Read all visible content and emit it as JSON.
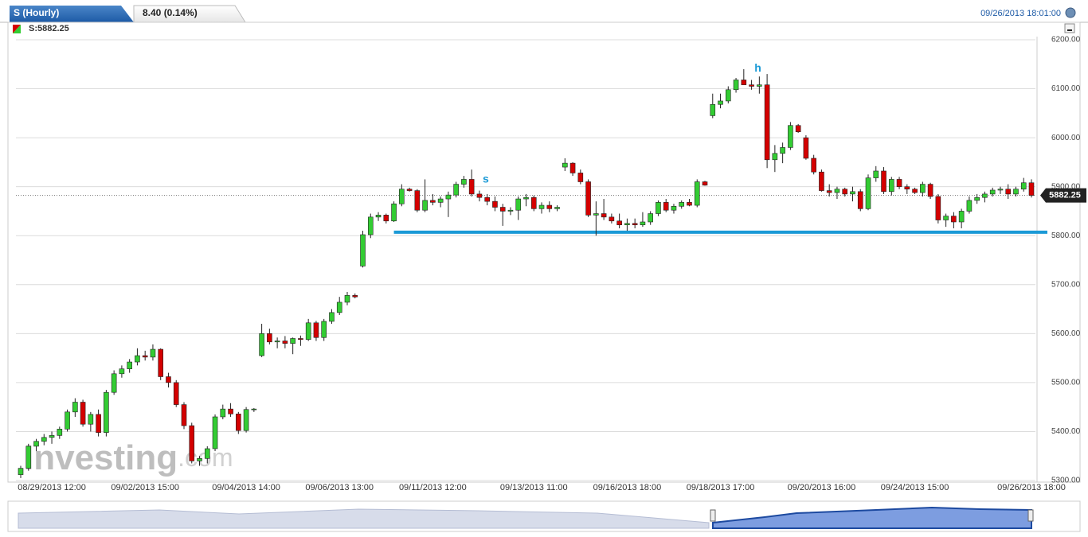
{
  "header": {
    "title": "S (Hourly)",
    "change": "8.40 (0.14%)",
    "timestamp": "09/26/2013 18:01:00",
    "legend": "S:5882.25"
  },
  "chart_data": {
    "type": "candlestick",
    "ylim": [
      5300,
      6200
    ],
    "yticks": [
      {
        "value": 5300,
        "label": "5300.00"
      },
      {
        "value": 5400,
        "label": "5400.00"
      },
      {
        "value": 5500,
        "label": "5500.00"
      },
      {
        "value": 5600,
        "label": "5600.00"
      },
      {
        "value": 5700,
        "label": "5700.00"
      },
      {
        "value": 5800,
        "label": "5800.00"
      },
      {
        "value": 5900,
        "label": "5900.00"
      },
      {
        "value": 6000,
        "label": "6000.00"
      },
      {
        "value": 6100,
        "label": "6100.00"
      },
      {
        "value": 6200,
        "label": "6200.00"
      }
    ],
    "grid": true,
    "up_color": "#33cc33",
    "down_color": "#d40000",
    "last_price": {
      "value": 5882.25,
      "label": "5882.25"
    },
    "support": {
      "value": 5807,
      "from": 48,
      "color": "#1b9ad6"
    },
    "annotations": [
      {
        "text": "s",
        "at": 59
      },
      {
        "text": "h",
        "at": 94
      }
    ],
    "watermark": "Investing",
    "watermark_suffix": ".com",
    "categories": [
      null,
      null,
      null,
      null,
      "08/29/2013 12:00",
      null,
      null,
      null,
      null,
      null,
      null,
      null,
      null,
      null,
      null,
      null,
      "09/02/2013 15:00",
      null,
      null,
      null,
      null,
      null,
      null,
      null,
      null,
      null,
      null,
      null,
      null,
      "09/04/2013 14:00",
      null,
      null,
      null,
      null,
      null,
      null,
      null,
      null,
      null,
      null,
      null,
      "09/06/2013 13:00",
      null,
      null,
      null,
      null,
      null,
      null,
      null,
      null,
      null,
      null,
      null,
      "09/11/2013 12:00",
      null,
      null,
      null,
      null,
      null,
      null,
      null,
      null,
      null,
      null,
      null,
      null,
      "09/13/2013 11:00",
      null,
      null,
      null,
      null,
      null,
      null,
      null,
      null,
      null,
      null,
      null,
      "09/16/2013 18:00",
      null,
      null,
      null,
      null,
      null,
      null,
      null,
      null,
      null,
      null,
      null,
      "09/18/2013 17:00",
      null,
      null,
      null,
      null,
      null,
      null,
      null,
      null,
      null,
      null,
      null,
      null,
      "09/20/2013 16:00",
      null,
      null,
      null,
      null,
      null,
      null,
      null,
      null,
      null,
      null,
      null,
      "09/24/2013 15:00",
      null,
      null,
      null,
      null,
      null,
      null,
      null,
      null,
      null,
      null,
      null,
      null,
      null,
      null,
      "09/26/2013 18:00"
    ],
    "ohlc": [
      [
        5312,
        5330,
        5305,
        5325
      ],
      [
        5325,
        5375,
        5320,
        5370
      ],
      [
        5370,
        5385,
        5360,
        5380
      ],
      [
        5380,
        5395,
        5372,
        5388
      ],
      [
        5388,
        5400,
        5375,
        5392
      ],
      [
        5392,
        5410,
        5385,
        5405
      ],
      [
        5405,
        5445,
        5400,
        5440
      ],
      [
        5440,
        5468,
        5430,
        5460
      ],
      [
        5460,
        5465,
        5410,
        5415
      ],
      [
        5415,
        5440,
        5400,
        5435
      ],
      [
        5435,
        5445,
        5390,
        5398
      ],
      [
        5398,
        5485,
        5390,
        5480
      ],
      [
        5480,
        5525,
        5475,
        5518
      ],
      [
        5518,
        5535,
        5510,
        5528
      ],
      [
        5528,
        5548,
        5520,
        5542
      ],
      [
        5542,
        5570,
        5535,
        5555
      ],
      [
        5555,
        5565,
        5545,
        5552
      ],
      [
        5552,
        5578,
        5545,
        5568
      ],
      [
        5568,
        5570,
        5505,
        5512
      ],
      [
        5512,
        5520,
        5490,
        5500
      ],
      [
        5500,
        5505,
        5450,
        5455
      ],
      [
        5455,
        5460,
        5405,
        5412
      ],
      [
        5412,
        5418,
        5335,
        5340
      ],
      [
        5340,
        5350,
        5330,
        5345
      ],
      [
        5345,
        5370,
        5335,
        5365
      ],
      [
        5365,
        5435,
        5360,
        5430
      ],
      [
        5430,
        5455,
        5425,
        5446
      ],
      [
        5446,
        5458,
        5430,
        5436
      ],
      [
        5436,
        5440,
        5395,
        5402
      ],
      [
        5402,
        5450,
        5398,
        5445
      ],
      [
        5445,
        5448,
        5440,
        5446
      ],
      [
        5555,
        5620,
        5552,
        5600
      ],
      [
        5600,
        5610,
        5578,
        5583
      ],
      [
        5583,
        5592,
        5570,
        5585
      ],
      [
        5585,
        5595,
        5570,
        5580
      ],
      [
        5580,
        5592,
        5558,
        5590
      ],
      [
        5590,
        5596,
        5575,
        5588
      ],
      [
        5588,
        5630,
        5585,
        5622
      ],
      [
        5622,
        5626,
        5585,
        5592
      ],
      [
        5592,
        5630,
        5585,
        5625
      ],
      [
        5625,
        5650,
        5620,
        5643
      ],
      [
        5643,
        5675,
        5638,
        5664
      ],
      [
        5664,
        5685,
        5658,
        5678
      ],
      [
        5678,
        5682,
        5672,
        5675
      ],
      [
        5738,
        5810,
        5735,
        5802
      ],
      [
        5802,
        5845,
        5795,
        5838
      ],
      [
        5838,
        5848,
        5830,
        5842
      ],
      [
        5842,
        5845,
        5825,
        5830
      ],
      [
        5830,
        5870,
        5828,
        5865
      ],
      [
        5865,
        5905,
        5860,
        5895
      ],
      [
        5895,
        5898,
        5890,
        5892
      ],
      [
        5892,
        5895,
        5848,
        5852
      ],
      [
        5852,
        5915,
        5848,
        5872
      ],
      [
        5872,
        5885,
        5862,
        5868
      ],
      [
        5868,
        5880,
        5858,
        5875
      ],
      [
        5875,
        5890,
        5838,
        5883
      ],
      [
        5883,
        5910,
        5878,
        5905
      ],
      [
        5905,
        5922,
        5898,
        5915
      ],
      [
        5915,
        5935,
        5880,
        5885
      ],
      [
        5885,
        5892,
        5870,
        5878
      ],
      [
        5878,
        5885,
        5862,
        5870
      ],
      [
        5870,
        5880,
        5850,
        5858
      ],
      [
        5858,
        5865,
        5820,
        5850
      ],
      [
        5850,
        5858,
        5842,
        5852
      ],
      [
        5852,
        5880,
        5832,
        5875
      ],
      [
        5875,
        5885,
        5860,
        5878
      ],
      [
        5878,
        5882,
        5850,
        5855
      ],
      [
        5855,
        5868,
        5845,
        5862
      ],
      [
        5862,
        5870,
        5848,
        5855
      ],
      [
        5855,
        5862,
        5850,
        5858
      ],
      [
        5940,
        5958,
        5932,
        5948
      ],
      [
        5948,
        5950,
        5922,
        5928
      ],
      [
        5928,
        5935,
        5905,
        5910
      ],
      [
        5910,
        5915,
        5838,
        5842
      ],
      [
        5842,
        5870,
        5800,
        5845
      ],
      [
        5845,
        5875,
        5832,
        5838
      ],
      [
        5838,
        5845,
        5825,
        5830
      ],
      [
        5830,
        5845,
        5815,
        5822
      ],
      [
        5822,
        5835,
        5810,
        5825
      ],
      [
        5825,
        5835,
        5815,
        5822
      ],
      [
        5822,
        5848,
        5818,
        5828
      ],
      [
        5828,
        5850,
        5822,
        5845
      ],
      [
        5845,
        5872,
        5840,
        5868
      ],
      [
        5868,
        5875,
        5848,
        5852
      ],
      [
        5852,
        5865,
        5845,
        5860
      ],
      [
        5860,
        5872,
        5855,
        5868
      ],
      [
        5868,
        5875,
        5860,
        5862
      ],
      [
        5862,
        5915,
        5858,
        5910
      ],
      [
        5910,
        5912,
        5902,
        5903
      ],
      [
        6045,
        6090,
        6040,
        6068
      ],
      [
        6068,
        6090,
        6060,
        6075
      ],
      [
        6075,
        6105,
        6070,
        6098
      ],
      [
        6098,
        6122,
        6092,
        6118
      ],
      [
        6118,
        6140,
        6110,
        6108
      ],
      [
        6108,
        6118,
        6098,
        6105
      ],
      [
        6105,
        6125,
        6090,
        6108
      ],
      [
        6108,
        6130,
        5938,
        5955
      ],
      [
        5955,
        5985,
        5930,
        5968
      ],
      [
        5968,
        5990,
        5948,
        5980
      ],
      [
        5980,
        6032,
        5975,
        6025
      ],
      [
        6025,
        6028,
        6010,
        6012
      ],
      [
        6000,
        6005,
        5955,
        5958
      ],
      [
        5958,
        5965,
        5925,
        5930
      ],
      [
        5930,
        5935,
        5890,
        5892
      ],
      [
        5892,
        5905,
        5880,
        5888
      ],
      [
        5888,
        5900,
        5875,
        5895
      ],
      [
        5895,
        5898,
        5880,
        5885
      ],
      [
        5885,
        5900,
        5870,
        5890
      ],
      [
        5890,
        5895,
        5850,
        5855
      ],
      [
        5855,
        5925,
        5852,
        5918
      ],
      [
        5918,
        5942,
        5910,
        5932
      ],
      [
        5932,
        5940,
        5885,
        5890
      ],
      [
        5890,
        5920,
        5882,
        5915
      ],
      [
        5915,
        5920,
        5895,
        5900
      ],
      [
        5900,
        5905,
        5885,
        5895
      ],
      [
        5895,
        5898,
        5885,
        5888
      ],
      [
        5888,
        5910,
        5880,
        5905
      ],
      [
        5905,
        5908,
        5875,
        5880
      ],
      [
        5880,
        5885,
        5825,
        5832
      ],
      [
        5832,
        5845,
        5818,
        5840
      ],
      [
        5840,
        5848,
        5815,
        5828
      ],
      [
        5828,
        5855,
        5815,
        5850
      ],
      [
        5850,
        5880,
        5845,
        5872
      ],
      [
        5872,
        5885,
        5865,
        5878
      ],
      [
        5878,
        5890,
        5868,
        5885
      ],
      [
        5885,
        5898,
        5880,
        5893
      ],
      [
        5893,
        5900,
        5885,
        5895
      ],
      [
        5895,
        5905,
        5875,
        5885
      ],
      [
        5885,
        5900,
        5880,
        5895
      ],
      [
        5895,
        5918,
        5890,
        5908
      ],
      [
        5908,
        5915,
        5878,
        5882.25
      ]
    ]
  }
}
